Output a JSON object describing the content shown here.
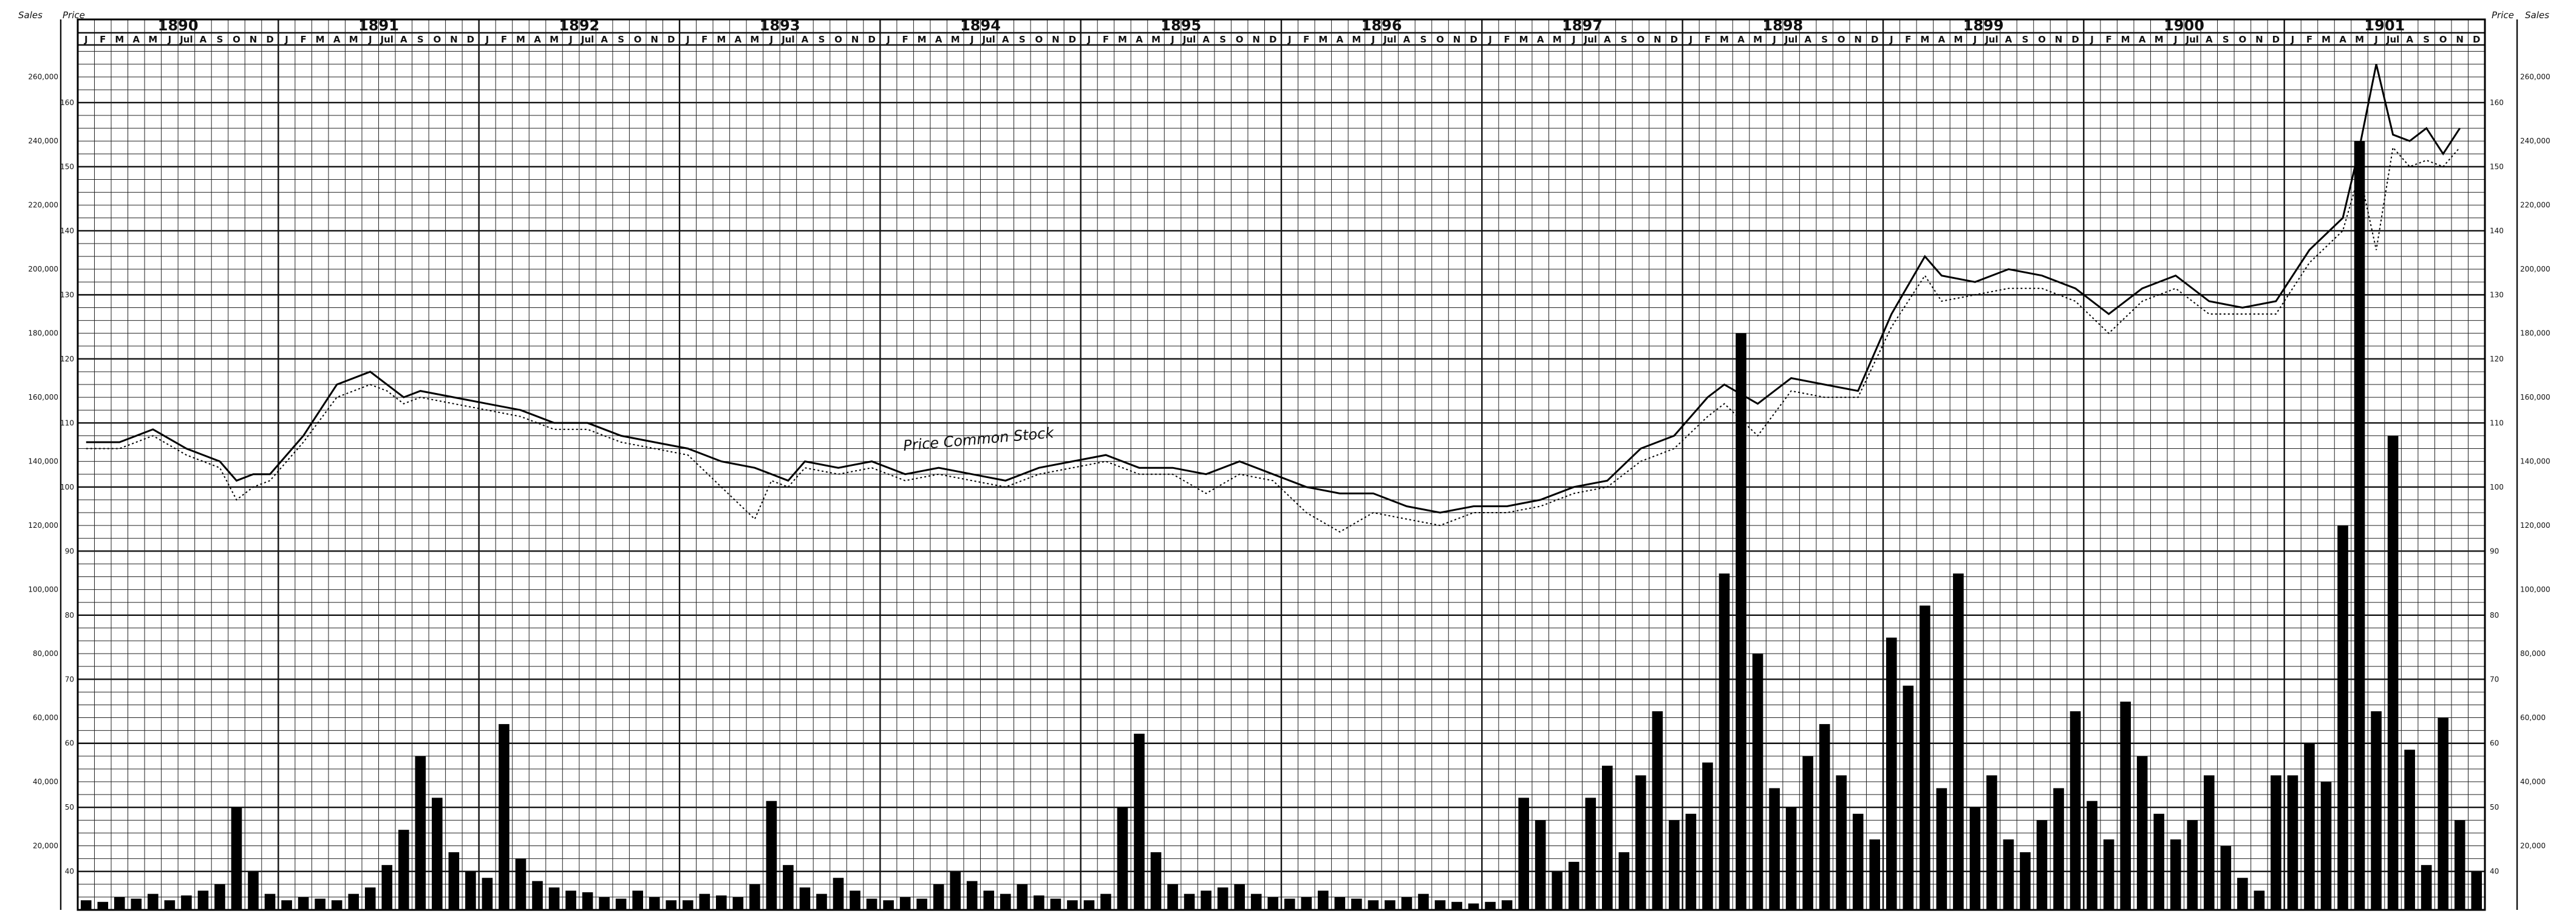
{
  "chart_data": {
    "type": "line",
    "title": "",
    "annotation": "Price Common Stock",
    "corner_labels": {
      "left_sales": "Sales",
      "left_price": "Price",
      "right_price": "Price",
      "right_sales": "Sales"
    },
    "years": [
      "1890",
      "1891",
      "1892",
      "1893",
      "1894",
      "1895",
      "1896",
      "1897",
      "1898",
      "1899",
      "1900",
      "1901"
    ],
    "months": [
      "J",
      "F",
      "M",
      "A",
      "M",
      "J",
      "Jul",
      "A",
      "S",
      "O",
      "N",
      "D"
    ],
    "y_price": {
      "range": [
        34,
        169
      ],
      "ticks": [
        40,
        50,
        60,
        70,
        80,
        90,
        100,
        110,
        120,
        130,
        140,
        150,
        160
      ]
    },
    "y_sales_left": {
      "range": [
        0,
        270000
      ],
      "ticks": [
        "20,000",
        "40,000",
        "60,000",
        "80,000",
        "100,000",
        "120,000",
        "140,000",
        "160,000",
        "180,000",
        "200,000",
        "220,000",
        "240,000",
        "260,000"
      ]
    },
    "y_sales_right": {
      "ticks": [
        "20,000",
        "40,000",
        "60,000",
        "80,000",
        "100,000",
        "120,000",
        "140,000",
        "160,000",
        "180,000",
        "200,000",
        "220,000",
        "240,000",
        "260,000"
      ]
    },
    "grid": true,
    "series": [
      {
        "name": "Price Common Stock",
        "style": "solid",
        "x": [
          "1890-01",
          "1890-03",
          "1890-05",
          "1890-07",
          "1890-09",
          "1890-10",
          "1890-11",
          "1890-12",
          "1891-02",
          "1891-04",
          "1891-06",
          "1891-07",
          "1891-08",
          "1891-09",
          "1891-11",
          "1892-01",
          "1892-03",
          "1892-05",
          "1892-07",
          "1892-09",
          "1892-11",
          "1893-01",
          "1893-03",
          "1893-05",
          "1893-06",
          "1893-07",
          "1893-08",
          "1893-10",
          "1893-12",
          "1894-02",
          "1894-04",
          "1894-06",
          "1894-08",
          "1894-10",
          "1894-12",
          "1895-02",
          "1895-04",
          "1895-06",
          "1895-08",
          "1895-10",
          "1895-12",
          "1896-02",
          "1896-04",
          "1896-06",
          "1896-08",
          "1896-10",
          "1896-12",
          "1897-02",
          "1897-04",
          "1897-06",
          "1897-08",
          "1897-10",
          "1897-12",
          "1898-02",
          "1898-03",
          "1898-05",
          "1898-07",
          "1898-09",
          "1898-11",
          "1899-01",
          "1899-03",
          "1899-04",
          "1899-06",
          "1899-08",
          "1899-10",
          "1899-12",
          "1900-02",
          "1900-04",
          "1900-06",
          "1900-08",
          "1900-10",
          "1900-12",
          "1901-02",
          "1901-04",
          "1901-05",
          "1901-06",
          "1901-07",
          "1901-08",
          "1901-09",
          "1901-10",
          "1901-11"
        ],
        "values": [
          107,
          107,
          109,
          106,
          104,
          101,
          102,
          102,
          108,
          116,
          118,
          116,
          114,
          115,
          114,
          113,
          112,
          110,
          110,
          108,
          107,
          106,
          104,
          103,
          102,
          101,
          104,
          103,
          104,
          102,
          103,
          102,
          101,
          103,
          104,
          105,
          103,
          103,
          102,
          104,
          102,
          100,
          99,
          99,
          97,
          96,
          97,
          97,
          98,
          100,
          101,
          106,
          108,
          114,
          116,
          113,
          117,
          116,
          115,
          127,
          136,
          133,
          132,
          134,
          133,
          131,
          127,
          131,
          133,
          129,
          128,
          129,
          137,
          142,
          153,
          166,
          155,
          154,
          156,
          152,
          156
        ]
      },
      {
        "name": "",
        "style": "dotted",
        "x": [
          "1890-01",
          "1890-03",
          "1890-05",
          "1890-07",
          "1890-09",
          "1890-10",
          "1890-11",
          "1890-12",
          "1891-02",
          "1891-04",
          "1891-06",
          "1891-07",
          "1891-08",
          "1891-09",
          "1891-11",
          "1892-01",
          "1892-03",
          "1892-05",
          "1892-07",
          "1892-09",
          "1892-11",
          "1893-01",
          "1893-03",
          "1893-05",
          "1893-06",
          "1893-07",
          "1893-08",
          "1893-10",
          "1893-12",
          "1894-02",
          "1894-04",
          "1894-06",
          "1894-08",
          "1894-10",
          "1894-12",
          "1895-02",
          "1895-04",
          "1895-06",
          "1895-08",
          "1895-10",
          "1895-12",
          "1896-02",
          "1896-04",
          "1896-06",
          "1896-08",
          "1896-10",
          "1896-12",
          "1897-02",
          "1897-04",
          "1897-06",
          "1897-08",
          "1897-10",
          "1897-12",
          "1898-02",
          "1898-03",
          "1898-05",
          "1898-07",
          "1898-09",
          "1898-11",
          "1899-01",
          "1899-03",
          "1899-04",
          "1899-06",
          "1899-08",
          "1899-10",
          "1899-12",
          "1900-02",
          "1900-04",
          "1900-06",
          "1900-08",
          "1900-10",
          "1900-12",
          "1901-02",
          "1901-04",
          "1901-05",
          "1901-06",
          "1901-07",
          "1901-08",
          "1901-09",
          "1901-10",
          "1901-11"
        ],
        "values": [
          106,
          106,
          108,
          105,
          103,
          98,
          100,
          101,
          107,
          114,
          116,
          115,
          113,
          114,
          113,
          112,
          111,
          109,
          109,
          107,
          106,
          105,
          100,
          95,
          101,
          100,
          103,
          102,
          103,
          101,
          102,
          101,
          100,
          102,
          103,
          104,
          102,
          102,
          99,
          102,
          101,
          96,
          93,
          96,
          95,
          94,
          96,
          96,
          97,
          99,
          100,
          104,
          106,
          111,
          113,
          108,
          115,
          114,
          114,
          125,
          133,
          129,
          130,
          131,
          131,
          129,
          124,
          129,
          131,
          127,
          127,
          127,
          135,
          140,
          149,
          137,
          153,
          150,
          151,
          150,
          153
        ]
      },
      {
        "name": "",
        "style": "bars",
        "axis": "sales",
        "x": [
          "1890-01",
          "1890-02",
          "1890-03",
          "1890-04",
          "1890-05",
          "1890-06",
          "1890-07",
          "1890-08",
          "1890-09",
          "1890-10",
          "1890-11",
          "1890-12",
          "1891-01",
          "1891-02",
          "1891-03",
          "1891-04",
          "1891-05",
          "1891-06",
          "1891-07",
          "1891-08",
          "1891-09",
          "1891-10",
          "1891-11",
          "1891-12",
          "1892-01",
          "1892-02",
          "1892-03",
          "1892-04",
          "1892-05",
          "1892-06",
          "1892-07",
          "1892-08",
          "1892-09",
          "1892-10",
          "1892-11",
          "1892-12",
          "1893-01",
          "1893-02",
          "1893-03",
          "1893-04",
          "1893-05",
          "1893-06",
          "1893-07",
          "1893-08",
          "1893-09",
          "1893-10",
          "1893-11",
          "1893-12",
          "1894-01",
          "1894-02",
          "1894-03",
          "1894-04",
          "1894-05",
          "1894-06",
          "1894-07",
          "1894-08",
          "1894-09",
          "1894-10",
          "1894-11",
          "1894-12",
          "1895-01",
          "1895-02",
          "1895-03",
          "1895-04",
          "1895-05",
          "1895-06",
          "1895-07",
          "1895-08",
          "1895-09",
          "1895-10",
          "1895-11",
          "1895-12",
          "1896-01",
          "1896-02",
          "1896-03",
          "1896-04",
          "1896-05",
          "1896-06",
          "1896-07",
          "1896-08",
          "1896-09",
          "1896-10",
          "1896-11",
          "1896-12",
          "1897-01",
          "1897-02",
          "1897-03",
          "1897-04",
          "1897-05",
          "1897-06",
          "1897-07",
          "1897-08",
          "1897-09",
          "1897-10",
          "1897-11",
          "1897-12",
          "1898-01",
          "1898-02",
          "1898-03",
          "1898-04",
          "1898-05",
          "1898-06",
          "1898-07",
          "1898-08",
          "1898-09",
          "1898-10",
          "1898-11",
          "1898-12",
          "1899-01",
          "1899-02",
          "1899-03",
          "1899-04",
          "1899-05",
          "1899-06",
          "1899-07",
          "1899-08",
          "1899-09",
          "1899-10",
          "1899-11",
          "1899-12",
          "1900-01",
          "1900-02",
          "1900-03",
          "1900-04",
          "1900-05",
          "1900-06",
          "1900-07",
          "1900-08",
          "1900-09",
          "1900-10",
          "1900-11",
          "1900-12",
          "1901-01",
          "1901-02",
          "1901-03",
          "1901-04",
          "1901-05",
          "1901-06",
          "1901-07",
          "1901-08",
          "1901-09",
          "1901-10",
          "1901-11",
          "1901-12"
        ],
        "values": [
          3000,
          2500,
          4000,
          3500,
          5000,
          3000,
          4500,
          6000,
          8000,
          32000,
          12000,
          5000,
          3000,
          4000,
          3500,
          3000,
          5000,
          7000,
          14000,
          25000,
          48000,
          35000,
          18000,
          12000,
          10000,
          58000,
          16000,
          9000,
          7000,
          6000,
          5500,
          4000,
          3500,
          6000,
          4000,
          3000,
          3000,
          5000,
          4500,
          4000,
          8000,
          34000,
          14000,
          7000,
          5000,
          10000,
          6000,
          3500,
          3000,
          4000,
          3500,
          8000,
          12000,
          9000,
          6000,
          5000,
          8000,
          4500,
          3500,
          3000,
          3000,
          5000,
          32000,
          55000,
          18000,
          8000,
          5000,
          6000,
          7000,
          8000,
          5000,
          4000,
          3500,
          4000,
          6000,
          4000,
          3500,
          3000,
          3000,
          4000,
          5000,
          3000,
          2500,
          2000,
          2500,
          3000,
          35000,
          28000,
          12000,
          15000,
          35000,
          45000,
          18000,
          42000,
          62000,
          28000,
          30000,
          46000,
          105000,
          180000,
          80000,
          38000,
          32000,
          48000,
          58000,
          42000,
          30000,
          22000,
          85000,
          70000,
          95000,
          38000,
          105000,
          32000,
          42000,
          22000,
          18000,
          28000,
          38000,
          62000,
          34000,
          22000,
          65000,
          48000,
          30000,
          22000,
          28000,
          42000,
          20000,
          10000,
          6000,
          42000,
          42000,
          52000,
          40000,
          120000,
          240000,
          62000,
          148000,
          50000,
          14000,
          60000,
          28000,
          12000
        ]
      }
    ]
  }
}
